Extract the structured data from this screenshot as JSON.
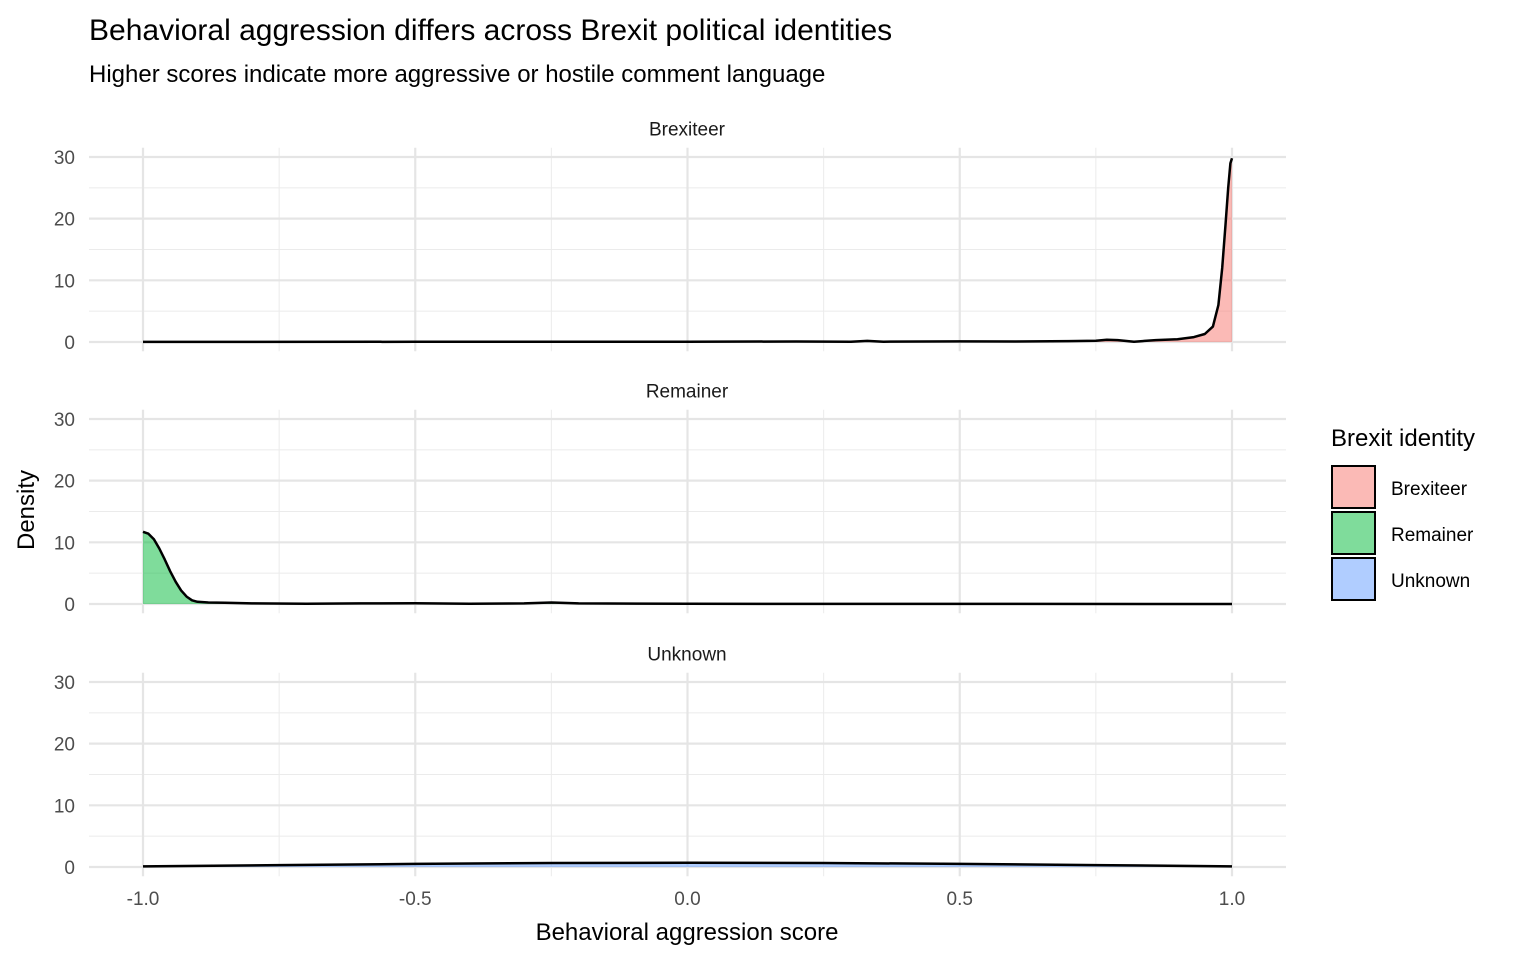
{
  "chart_data": {
    "type": "area",
    "title": "Behavioral aggression differs across Brexit political identities",
    "subtitle": "Higher scores indicate more aggressive or hostile comment language",
    "xlabel": "Behavioral aggression score",
    "ylabel": "Density",
    "xlim": [
      -1.0,
      1.0
    ],
    "ylim": [
      0,
      30
    ],
    "x_ticks": [
      "-1.0",
      "-0.5",
      "0.0",
      "0.5",
      "1.0"
    ],
    "x_tick_values": [
      -1.0,
      -0.5,
      0.0,
      0.5,
      1.0
    ],
    "y_ticks": [
      "0",
      "10",
      "20",
      "30"
    ],
    "y_tick_values": [
      0,
      10,
      20,
      30
    ],
    "grid": true,
    "legend": {
      "title": "Brexit identity",
      "placement": "right"
    },
    "series": [
      {
        "name": "Brexiteer",
        "color": "#F8766D",
        "x": [
          -1.0,
          -0.5,
          0.0,
          0.2,
          0.3,
          0.33,
          0.36,
          0.5,
          0.6,
          0.7,
          0.75,
          0.77,
          0.79,
          0.82,
          0.86,
          0.9,
          0.93,
          0.95,
          0.965,
          0.975,
          0.982,
          0.988,
          0.993,
          0.997,
          1.0
        ],
        "y": [
          0.02,
          0.03,
          0.05,
          0.08,
          0.05,
          0.18,
          0.05,
          0.1,
          0.08,
          0.15,
          0.2,
          0.35,
          0.3,
          0.05,
          0.3,
          0.45,
          0.8,
          1.3,
          2.5,
          6,
          12,
          19,
          25,
          29,
          29.8
        ]
      },
      {
        "name": "Remainer",
        "color": "#00BA38",
        "x": [
          -1.0,
          -0.99,
          -0.98,
          -0.97,
          -0.96,
          -0.95,
          -0.94,
          -0.93,
          -0.92,
          -0.91,
          -0.9,
          -0.88,
          -0.85,
          -0.8,
          -0.7,
          -0.6,
          -0.5,
          -0.4,
          -0.3,
          -0.25,
          -0.2,
          0.0,
          0.5,
          1.0
        ],
        "y": [
          11.7,
          11.4,
          10.5,
          9.0,
          7.2,
          5.3,
          3.6,
          2.2,
          1.2,
          0.6,
          0.35,
          0.25,
          0.2,
          0.1,
          0.05,
          0.1,
          0.12,
          0.05,
          0.1,
          0.25,
          0.1,
          0.03,
          0.01,
          0.0
        ]
      },
      {
        "name": "Unknown",
        "color": "#619CFF",
        "x": [
          -1.0,
          -0.75,
          -0.5,
          -0.25,
          0.0,
          0.25,
          0.5,
          0.75,
          1.0
        ],
        "y": [
          0.1,
          0.3,
          0.5,
          0.65,
          0.7,
          0.65,
          0.5,
          0.3,
          0.1
        ]
      }
    ]
  }
}
